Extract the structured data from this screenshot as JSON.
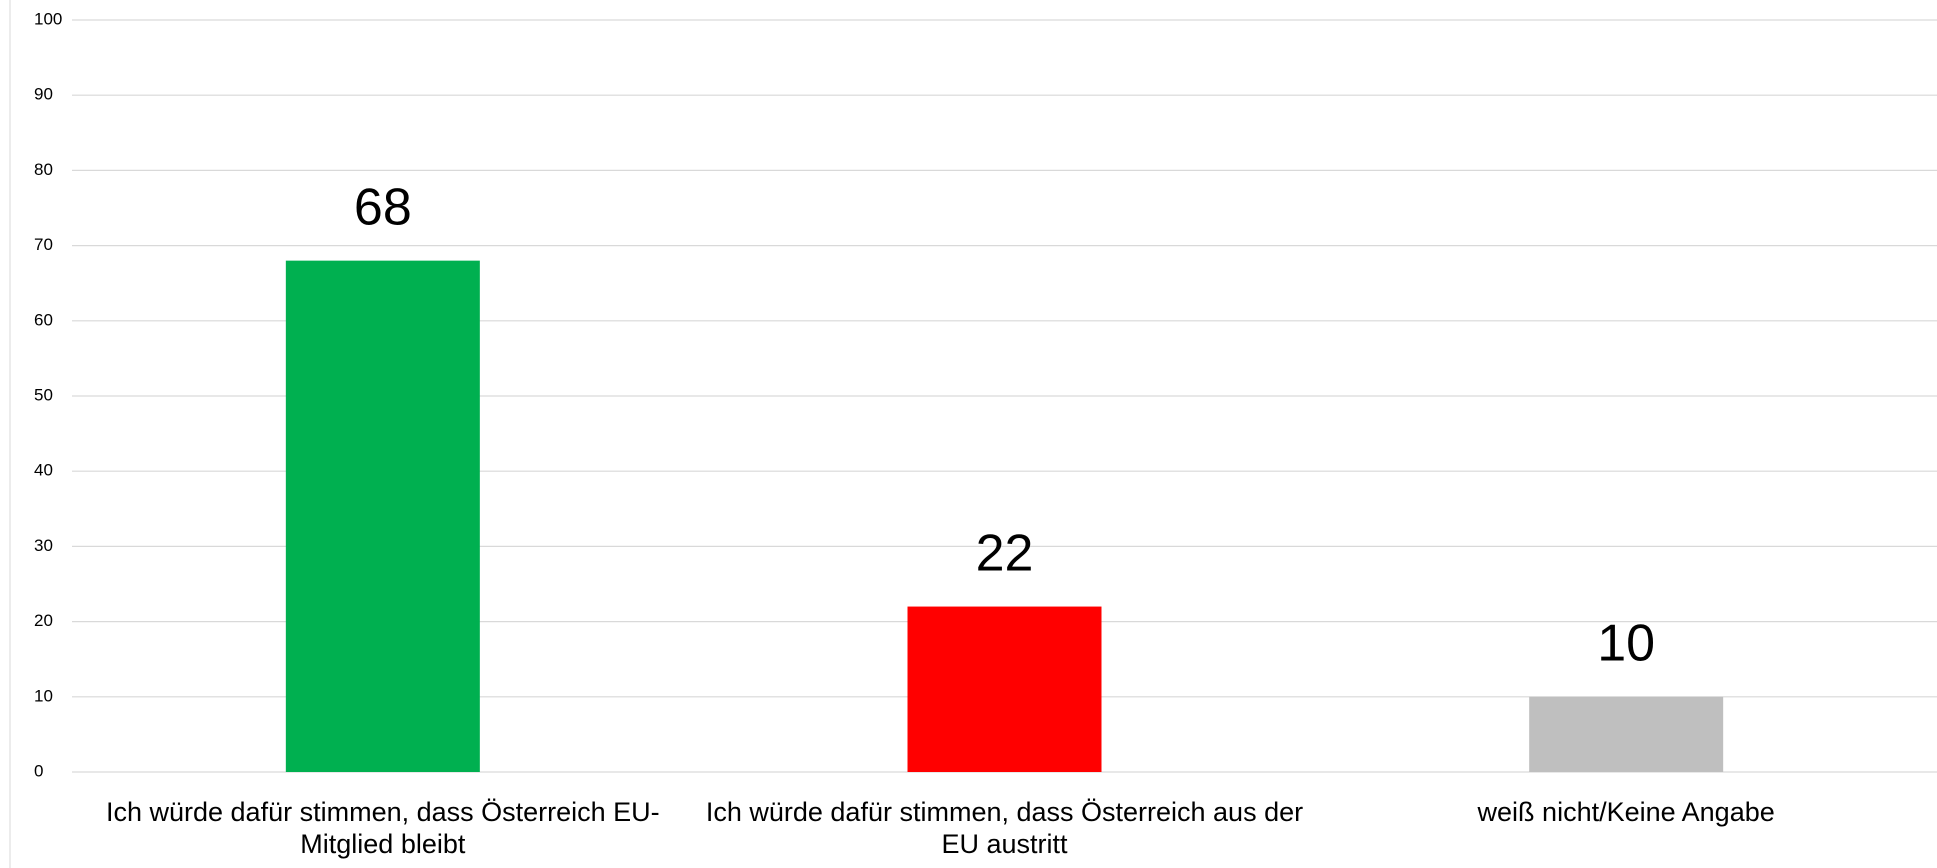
{
  "chart_data": {
    "type": "bar",
    "categories": [
      "Ich würde dafür stimmen, dass Österreich EU-Mitglied bleibt",
      "Ich würde dafür stimmen, dass Österreich aus der EU austritt",
      "weiß nicht/Keine Angabe"
    ],
    "values": [
      68,
      22,
      10
    ],
    "colors": [
      "#00b050",
      "#ff0000",
      "#bfbfbf"
    ],
    "ylim": [
      0,
      100
    ],
    "yticks": [
      0,
      10,
      20,
      30,
      40,
      50,
      60,
      70,
      80,
      90,
      100
    ],
    "grid": true
  }
}
